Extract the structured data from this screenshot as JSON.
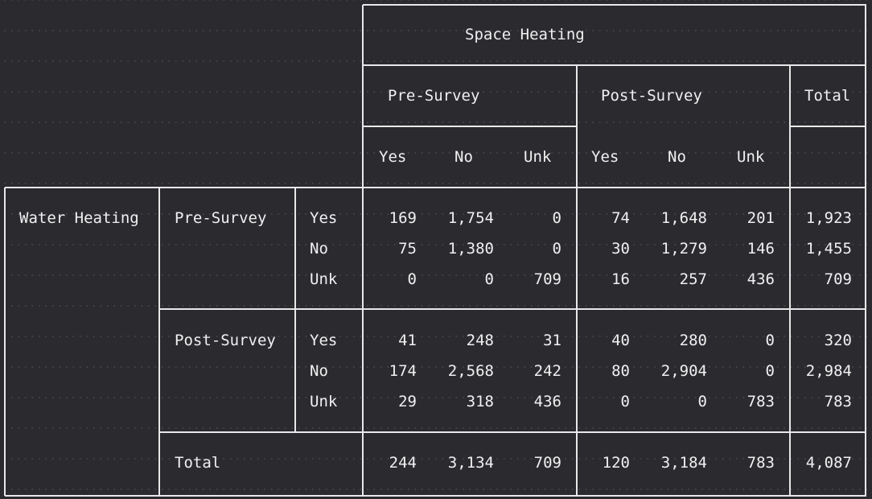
{
  "table": {
    "header": {
      "group": "Space Heating",
      "sub_groups": [
        "Pre-Survey",
        "Post-Survey"
      ],
      "total": "Total",
      "columns": [
        "Yes",
        "No",
        "Unk",
        "Yes",
        "No",
        "Unk"
      ]
    },
    "row_group": "Water Heating",
    "sections": [
      {
        "label": "Pre-Survey",
        "rows": [
          {
            "label": "Yes",
            "values": [
              "169",
              "1,754",
              "0",
              "74",
              "1,648",
              "201",
              "1,923"
            ]
          },
          {
            "label": "No",
            "values": [
              "75",
              "1,380",
              "0",
              "30",
              "1,279",
              "146",
              "1,455"
            ]
          },
          {
            "label": "Unk",
            "values": [
              "0",
              "0",
              "709",
              "16",
              "257",
              "436",
              "709"
            ]
          }
        ]
      },
      {
        "label": "Post-Survey",
        "rows": [
          {
            "label": "Yes",
            "values": [
              "41",
              "248",
              "31",
              "40",
              "280",
              "0",
              "320"
            ]
          },
          {
            "label": "No",
            "values": [
              "174",
              "2,568",
              "242",
              "80",
              "2,904",
              "0",
              "2,984"
            ]
          },
          {
            "label": "Unk",
            "values": [
              "29",
              "318",
              "436",
              "0",
              "0",
              "783",
              "783"
            ]
          }
        ]
      }
    ],
    "total_row": {
      "label": "Total",
      "values": [
        "244",
        "3,134",
        "709",
        "120",
        "3,184",
        "783",
        "4,087"
      ]
    }
  },
  "colors": {
    "background": "#2b2a2f",
    "text": "#f0f0f0",
    "lines": "#e8e8e8"
  }
}
